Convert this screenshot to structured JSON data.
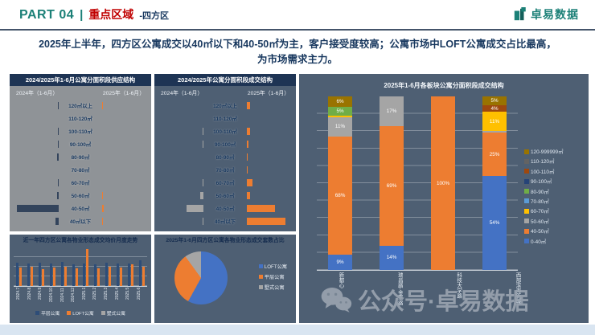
{
  "header": {
    "part": "PART 04",
    "separator": "|",
    "title": "重点区域",
    "subtitle_suffix": "-四方区",
    "logo_text": "卓易数据"
  },
  "summary": "2025年上半年，四方区公寓成交以40㎡以下和40-50㎡为主，客户接受度较高；公寓市场中LOFT公寓成交占比最高，为市场需求主力。",
  "watermark": {
    "text": "公众号·卓易数据"
  },
  "chart_data": [
    {
      "id": "supply-structure-butterfly",
      "type": "bar",
      "variant": "butterfly",
      "title": "2024/2025年1-6月公寓分面积段供应结构",
      "left_series": "2024年（1-6月）",
      "right_series": "2025年（1-6月）",
      "categories": [
        "120㎡以上",
        "110-120㎡",
        "100-110㎡",
        "90-100㎡",
        "80-90㎡",
        "70-80㎡",
        "60-70㎡",
        "50-60㎡",
        "40-50㎡",
        "40㎡以下"
      ],
      "left_values": [
        2,
        0,
        1,
        2,
        3,
        0,
        1,
        3,
        92,
        7
      ],
      "right_values": [
        1,
        0,
        0,
        0,
        0,
        0,
        0,
        1,
        3,
        2
      ],
      "left_color": "#33445c",
      "right_color": "#ED7D31",
      "note": "axis unlabeled; values are relative estimates"
    },
    {
      "id": "deal-structure-butterfly",
      "type": "bar",
      "variant": "butterfly",
      "title": "2024/2025年公寓分面积段成交结构",
      "left_series": "2024年（1-6月）",
      "right_series": "2025年（1-6月）",
      "categories": [
        "120㎡以上",
        "110-120㎡",
        "100-110㎡",
        "90-100㎡",
        "80-90㎡",
        "70-80㎡",
        "60-70㎡",
        "50-60㎡",
        "40-50㎡",
        "40㎡以下"
      ],
      "left_values": [
        0,
        0,
        2,
        1,
        0,
        0,
        2,
        8,
        38,
        2
      ],
      "right_values": [
        8,
        0,
        7,
        3,
        1,
        1,
        13,
        7,
        62,
        85
      ],
      "left_color": "#A5A5A5",
      "right_color": "#ED7D31",
      "note": "axis unlabeled; values are relative estimates"
    },
    {
      "id": "price-trend",
      "type": "bar",
      "variant": "grouped",
      "title": "近一年四方区公寓各物业形态成交均价月度走势",
      "categories": [
        "2024.7",
        "2024.8",
        "2024.9",
        "2024.10",
        "2024.11",
        "2024.12",
        "2025.1",
        "2025.2",
        "2025.3",
        "2025.4",
        "2025.5",
        "2025.6"
      ],
      "series": [
        {
          "name": "平层公寓",
          "color": "#2E4D78",
          "values": [
            60,
            58,
            60,
            57,
            62,
            56,
            58,
            56,
            60,
            59,
            57,
            66
          ]
        },
        {
          "name": "LOFT公寓",
          "color": "#ED7D31",
          "values": [
            47,
            49,
            44,
            47,
            49,
            45,
            95,
            46,
            49,
            47,
            56,
            49
          ]
        },
        {
          "name": "墅式公寓",
          "color": "#A5A5A5",
          "values": [
            0,
            0,
            0,
            0,
            0,
            0,
            0,
            0,
            0,
            0,
            0,
            0
          ]
        }
      ],
      "note": "y-axis unlabeled; heights are relative estimates"
    },
    {
      "id": "type-share-pie",
      "type": "pie",
      "title": "2025年1-6月四方区公寓各物业形态成交套数占比",
      "labels": [
        "LOFT公寓",
        "平层公寓",
        "墅式公寓"
      ],
      "values": [
        58,
        32,
        10
      ],
      "colors": [
        "#4472C4",
        "#ED7D31",
        "#A5A5A5"
      ],
      "note": "slice sizes estimated, no data labels shown"
    },
    {
      "id": "district-deal-structure",
      "type": "bar",
      "variant": "stacked-percent",
      "title": "2025年1-6月各板块公寓分面积段成交结构",
      "categories": [
        "新都心",
        "瑞昌路-金华路",
        "科技大学路",
        "西部滨海新城"
      ],
      "series": [
        {
          "name": "0-40㎡",
          "color": "#4472C4",
          "values": [
            9,
            14,
            0,
            54
          ]
        },
        {
          "name": "40-50㎡",
          "color": "#ED7D31",
          "values": [
            68,
            69,
            100,
            25
          ]
        },
        {
          "name": "50-60㎡",
          "color": "#A5A5A5",
          "values": [
            11,
            17,
            0,
            1
          ]
        },
        {
          "name": "60-70㎡",
          "color": "#FFC000",
          "values": [
            1,
            0,
            0,
            11
          ]
        },
        {
          "name": "70-80㎡",
          "color": "#5B9BD5",
          "values": [
            0,
            0,
            0,
            0
          ]
        },
        {
          "name": "80-90㎡",
          "color": "#70AD47",
          "values": [
            5,
            0,
            0,
            0
          ]
        },
        {
          "name": "90-100㎡",
          "color": "#264478",
          "values": [
            0,
            0,
            0,
            0
          ]
        },
        {
          "name": "100-110㎡",
          "color": "#9E480E",
          "values": [
            0,
            0,
            0,
            4
          ]
        },
        {
          "name": "110-120㎡",
          "color": "#636363",
          "values": [
            0,
            0,
            0,
            0
          ]
        },
        {
          "name": "120-999999㎡",
          "color": "#997300",
          "values": [
            6,
            0,
            0,
            5
          ]
        }
      ],
      "ylim": [
        0,
        100
      ],
      "gridlines": true,
      "legend_position": "right"
    }
  ]
}
